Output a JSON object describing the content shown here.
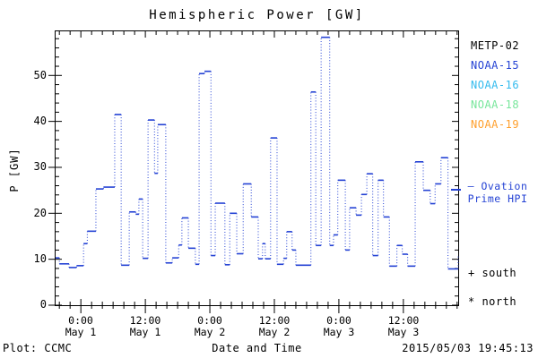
{
  "title": "Hemispheric Power [GW]",
  "y_axis": {
    "label": "P [GW]",
    "ticks": [
      "0",
      "10",
      "20",
      "30",
      "40",
      "50"
    ]
  },
  "x_axis": {
    "label": "Date and Time",
    "ticks": [
      {
        "time": "0:00",
        "date": "May 1"
      },
      {
        "time": "12:00",
        "date": "May 1"
      },
      {
        "time": "0:00",
        "date": "May 2"
      },
      {
        "time": "12:00",
        "date": "May 2"
      },
      {
        "time": "0:00",
        "date": "May 3"
      },
      {
        "time": "12:00",
        "date": "May 3"
      }
    ]
  },
  "legend": {
    "satellites": [
      {
        "label": "METP-02",
        "color": "#000000"
      },
      {
        "label": "NOAA-15",
        "color": "#2442d4"
      },
      {
        "label": "NOAA-16",
        "color": "#33bbee"
      },
      {
        "label": "NOAA-18",
        "color": "#77e69b"
      },
      {
        "label": "NOAA-19",
        "color": "#ffa02e"
      }
    ]
  },
  "annotations": {
    "ovation_line1": "— Ovation",
    "ovation_line2": "Prime HPI",
    "ovation_color": "#2442d4",
    "south": "+ south",
    "north": "* north"
  },
  "footer": {
    "left": "Plot: CCMC",
    "center": "Date and Time",
    "right": "2015/05/03 19:45:13"
  },
  "chart_data": {
    "type": "line",
    "style": "step-after, dotted vertical connectors",
    "title": "Hemispheric Power [GW]",
    "xlabel": "Date and Time",
    "ylabel": "P [GW]",
    "x_unit": "hours relative to 2015-05-01 00:00",
    "xlim": [
      -4.7,
      70.2
    ],
    "ylim": [
      0,
      59.6
    ],
    "x_major_hours": [
      0,
      12,
      24,
      36,
      48,
      60
    ],
    "x_minor_step_hours": 2,
    "y_major": [
      0,
      10,
      20,
      30,
      40,
      50
    ],
    "y_minor_step": 2,
    "grid": false,
    "series": [
      {
        "name": "Ovation Prime HPI",
        "color": "#2442d4",
        "points": [
          [
            -4.7,
            10.3
          ],
          [
            -4.0,
            9.0
          ],
          [
            -2.2,
            8.2
          ],
          [
            -0.8,
            8.6
          ],
          [
            0.5,
            13.4
          ],
          [
            1.2,
            16.1
          ],
          [
            2.8,
            25.3
          ],
          [
            4.2,
            25.7
          ],
          [
            6.3,
            41.5
          ],
          [
            7.5,
            8.7
          ],
          [
            9.0,
            20.3
          ],
          [
            10.2,
            19.8
          ],
          [
            10.8,
            23.1
          ],
          [
            11.5,
            10.2
          ],
          [
            12.5,
            40.3
          ],
          [
            13.7,
            28.7
          ],
          [
            14.3,
            39.3
          ],
          [
            15.8,
            9.2
          ],
          [
            17.0,
            10.3
          ],
          [
            18.2,
            13.1
          ],
          [
            18.8,
            19.0
          ],
          [
            20.0,
            12.4
          ],
          [
            21.3,
            8.9
          ],
          [
            22.0,
            50.4
          ],
          [
            23.0,
            50.9
          ],
          [
            24.2,
            10.8
          ],
          [
            25.0,
            22.2
          ],
          [
            26.8,
            8.8
          ],
          [
            27.7,
            20.0
          ],
          [
            29.0,
            11.2
          ],
          [
            30.2,
            26.4
          ],
          [
            31.7,
            19.2
          ],
          [
            33.0,
            10.1
          ],
          [
            33.8,
            13.4
          ],
          [
            34.3,
            10.1
          ],
          [
            35.3,
            36.4
          ],
          [
            36.5,
            8.9
          ],
          [
            37.7,
            10.2
          ],
          [
            38.3,
            16.0
          ],
          [
            39.3,
            12.0
          ],
          [
            40.0,
            8.7
          ],
          [
            42.8,
            46.4
          ],
          [
            43.7,
            13.0
          ],
          [
            44.7,
            58.3
          ],
          [
            46.3,
            13.0
          ],
          [
            47.0,
            15.3
          ],
          [
            47.8,
            27.2
          ],
          [
            49.2,
            12.0
          ],
          [
            50.0,
            21.2
          ],
          [
            51.2,
            19.6
          ],
          [
            52.2,
            24.1
          ],
          [
            53.2,
            28.6
          ],
          [
            54.3,
            10.8
          ],
          [
            55.3,
            27.2
          ],
          [
            56.3,
            19.2
          ],
          [
            57.4,
            8.5
          ],
          [
            58.8,
            13.0
          ],
          [
            59.8,
            11.1
          ],
          [
            60.8,
            8.5
          ],
          [
            62.2,
            31.2
          ],
          [
            63.7,
            25.0
          ],
          [
            65.0,
            22.1
          ],
          [
            65.9,
            26.4
          ],
          [
            67.0,
            32.1
          ],
          [
            68.3,
            7.9
          ],
          [
            69.9,
            7.9
          ],
          [
            70.2,
            10.8
          ]
        ]
      }
    ]
  }
}
